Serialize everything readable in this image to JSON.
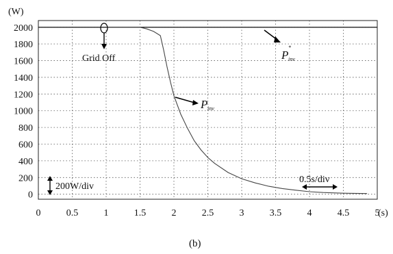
{
  "chart_data": {
    "type": "line",
    "title": "",
    "caption": "(b)",
    "y_unit": "(W)",
    "x_unit": "(s)",
    "xlim": [
      0,
      5
    ],
    "ylim": [
      -60,
      2080
    ],
    "x_ticks": [
      0,
      0.5,
      1,
      1.5,
      2,
      2.5,
      3,
      3.5,
      4,
      4.5,
      5
    ],
    "x_tick_labels": [
      "0",
      "0.5",
      "1",
      "1.5",
      "2",
      "2.5",
      "3",
      "3.5",
      "4",
      "4.5",
      "5"
    ],
    "y_ticks": [
      0,
      200,
      400,
      600,
      800,
      1000,
      1200,
      1400,
      1600,
      1800,
      2000
    ],
    "y_tick_labels": [
      "0",
      "200",
      "400",
      "600",
      "800",
      "1000",
      "1200",
      "1400",
      "1600",
      "1800",
      "2000"
    ],
    "grid": "dotted",
    "series": [
      {
        "name": "",
        "role": "reference",
        "x": [
          0,
          5
        ],
        "y": [
          2000,
          2000
        ]
      },
      {
        "name": "",
        "role": "measured",
        "x": [
          1.0,
          1.5,
          1.6,
          1.7,
          1.8,
          1.85,
          1.9,
          1.95,
          2.0,
          2.1,
          2.2,
          2.3,
          2.4,
          2.5,
          2.6,
          2.8,
          3.0,
          3.2,
          3.4,
          3.6,
          3.8,
          4.0,
          4.2,
          4.5,
          4.85
        ],
        "y": [
          2000,
          2000,
          1980,
          1950,
          1900,
          1720,
          1520,
          1340,
          1180,
          960,
          790,
          640,
          530,
          440,
          370,
          260,
          185,
          135,
          95,
          68,
          48,
          30,
          20,
          12,
          8
        ]
      }
    ],
    "annotations": {
      "grid_off": "Grid Off",
      "pinv_ref_main": "P",
      "pinv_ref_sub": "inv",
      "pinv_ref_sup": "*",
      "pinv_main": "P",
      "pinv_sub": "inv",
      "y_div": "200W/div",
      "x_div": "0.5s/div"
    }
  }
}
